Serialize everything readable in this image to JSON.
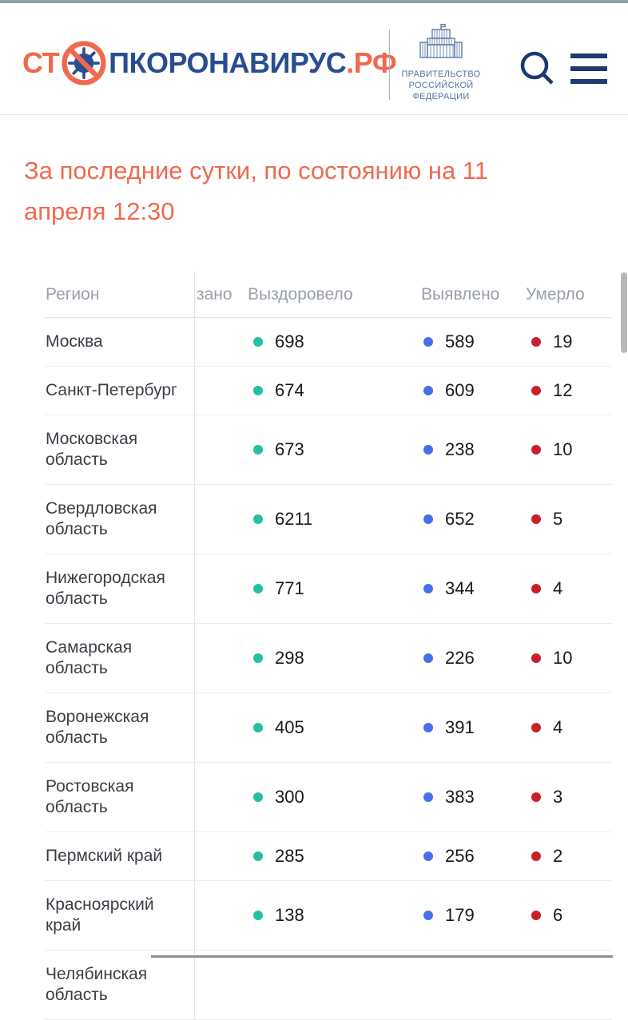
{
  "header": {
    "logo": {
      "prefix": "СТ",
      "middle": "ПКОРОНАВИРУС",
      "suffix": ".РФ"
    },
    "government": {
      "line1": "ПРАВИТЕЛЬСТВО",
      "line2": "РОССИЙСКОЙ",
      "line3": "ФЕДЕРАЦИИ"
    }
  },
  "heading": {
    "line1": "За последние сутки, по состоянию на 11",
    "line2": "апреля 12:30"
  },
  "colors": {
    "top_bar": "#8b9fa4",
    "accent_orange": "#f0694e",
    "logo_blue": "#2a4d90",
    "icon_navy": "#1c3a6e",
    "heading_text": "#ee6a51",
    "recovered_dot": "#26bfa6",
    "detected_dot": "#4472e6",
    "died_dot": "#c8202b"
  },
  "table": {
    "columns": {
      "region": "Регион",
      "hospitalized_fragment": "зано",
      "recovered": "Выздоровело",
      "detected": "Выявлено",
      "died": "Умерло"
    },
    "rows": [
      {
        "region": "Москва",
        "recovered": "698",
        "detected": "589",
        "died": "19"
      },
      {
        "region": "Санкт-Петербург",
        "recovered": "674",
        "detected": "609",
        "died": "12"
      },
      {
        "region": "Московская область",
        "recovered": "673",
        "detected": "238",
        "died": "10"
      },
      {
        "region": "Свердловская область",
        "recovered": "6211",
        "detected": "652",
        "died": "5"
      },
      {
        "region": "Нижегородская область",
        "recovered": "771",
        "detected": "344",
        "died": "4"
      },
      {
        "region": "Самарская область",
        "recovered": "298",
        "detected": "226",
        "died": "10"
      },
      {
        "region": "Воронежская область",
        "recovered": "405",
        "detected": "391",
        "died": "4"
      },
      {
        "region": "Ростовская область",
        "recovered": "300",
        "detected": "383",
        "died": "3"
      },
      {
        "region": "Пермский край",
        "recovered": "285",
        "detected": "256",
        "died": "2"
      },
      {
        "region": "Красноярский край",
        "recovered": "138",
        "detected": "179",
        "died": "6"
      },
      {
        "region": "Челябинская область",
        "recovered": "",
        "detected": "",
        "died": "",
        "partial": true
      }
    ]
  }
}
